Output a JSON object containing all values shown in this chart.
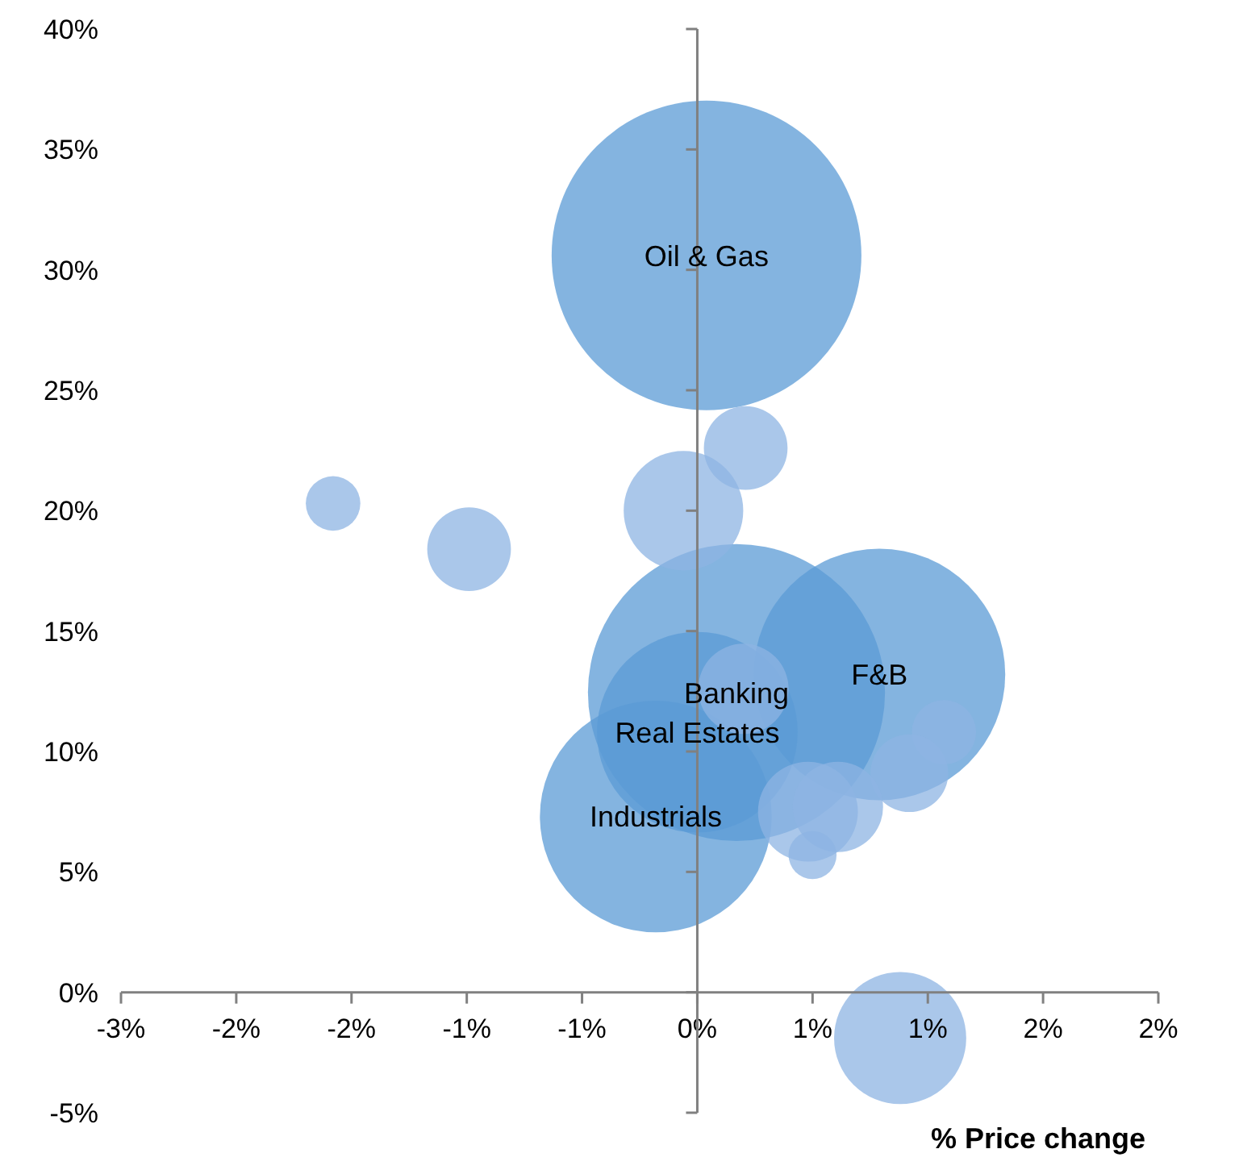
{
  "chart_data": {
    "type": "bubble",
    "xlabel": "% Price change",
    "xlim": [
      -2.5,
      2.0
    ],
    "xticks": [
      {
        "value": -2.5,
        "label": "-3%"
      },
      {
        "value": -2.0,
        "label": "-2%"
      },
      {
        "value": -1.5,
        "label": "-2%"
      },
      {
        "value": -1.0,
        "label": "-1%"
      },
      {
        "value": -0.5,
        "label": "-1%"
      },
      {
        "value": 0,
        "label": "0%"
      },
      {
        "value": 0.5,
        "label": "1%"
      },
      {
        "value": 1.0,
        "label": "1%"
      },
      {
        "value": 1.5,
        "label": "2%"
      },
      {
        "value": 2.0,
        "label": "2%"
      }
    ],
    "ylim": [
      -5,
      40
    ],
    "yticks": [
      {
        "value": -5,
        "label": "-5%"
      },
      {
        "value": 0,
        "label": "0%"
      },
      {
        "value": 5,
        "label": "5%"
      },
      {
        "value": 10,
        "label": "10%"
      },
      {
        "value": 15,
        "label": "15%"
      },
      {
        "value": 20,
        "label": "20%"
      },
      {
        "value": 25,
        "label": "25%"
      },
      {
        "value": 30,
        "label": "30%"
      },
      {
        "value": 35,
        "label": "35%"
      },
      {
        "value": 40,
        "label": "40%"
      }
    ],
    "series": [
      {
        "color": "#5b9bd5",
        "x": [
          0.04,
          0.17,
          0.79,
          0,
          -0.18
        ],
        "values": [
          30.6,
          12.45,
          13.2,
          10.8,
          7.3
        ],
        "sizes": [
          1,
          0.92,
          0.66,
          0.42,
          0.56
        ]
      },
      {
        "color": "#8eb4e3",
        "x": [
          0.2,
          1.07,
          0.92,
          0.48,
          0.61,
          0.5,
          -1.58,
          -0.99,
          -0.06,
          0.21,
          0.88
        ],
        "values": [
          12.6,
          10.8,
          9.1,
          7.5,
          7.7,
          5.7,
          20.3,
          18.4,
          20.0,
          22.6,
          -1.9
        ],
        "sizes": [
          0.085,
          0.043,
          0.063,
          0.104,
          0.085,
          0.024,
          0.031,
          0.073,
          0.149,
          0.073,
          0.182
        ]
      }
    ],
    "annotations": [
      {
        "text": "Oil & Gas",
        "x": 0.04,
        "y": 30.6
      },
      {
        "text": "Banking",
        "x": 0.17,
        "y": 12.45
      },
      {
        "text": "F&B",
        "x": 0.79,
        "y": 13.2
      },
      {
        "text": "Real Estates",
        "x": 0,
        "y": 10.8
      },
      {
        "text": "Industrials",
        "x": -0.18,
        "y": 7.3
      }
    ],
    "legend": false
  }
}
